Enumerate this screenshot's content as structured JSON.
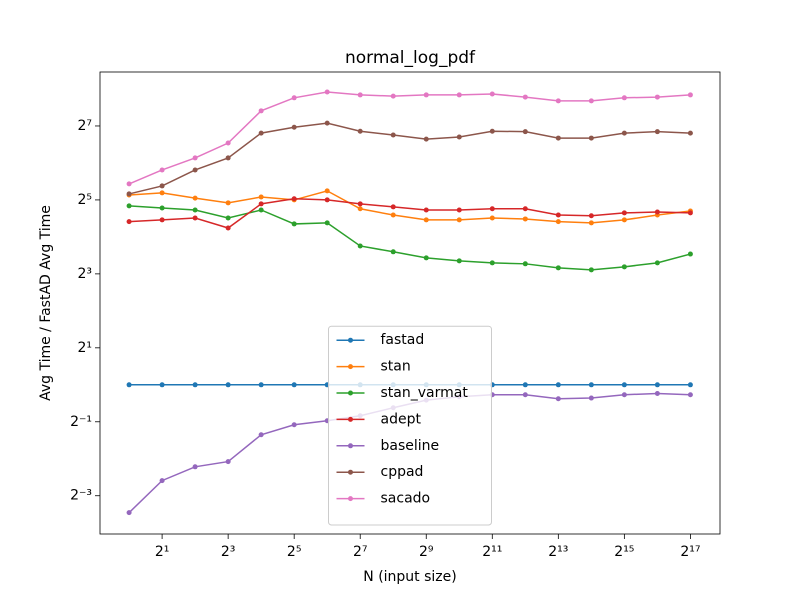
{
  "chart_data": {
    "type": "line",
    "title": "normal_log_pdf",
    "xlabel": "N (input size)",
    "ylabel": "Avg Time / FastAD Avg Time",
    "xscale": "log2",
    "yscale": "log2",
    "legend": "lower center",
    "x": [
      1,
      2,
      4,
      8,
      16,
      32,
      64,
      128,
      256,
      512,
      1024,
      2048,
      4096,
      8192,
      16384,
      32768,
      65536,
      131072
    ],
    "xlim": [
      0.543,
      244000
    ],
    "ylim": [
      0.061,
      352
    ],
    "xticks": [
      {
        "value": 2,
        "label": "2¹"
      },
      {
        "value": 8,
        "label": "2³"
      },
      {
        "value": 32,
        "label": "2⁵"
      },
      {
        "value": 128,
        "label": "2⁷"
      },
      {
        "value": 512,
        "label": "2⁹"
      },
      {
        "value": 2048,
        "label": "2¹¹"
      },
      {
        "value": 8192,
        "label": "2¹³"
      },
      {
        "value": 32768,
        "label": "2¹⁵"
      },
      {
        "value": 131072,
        "label": "2¹⁷"
      }
    ],
    "yticks": [
      {
        "value": 0.125,
        "label": "2⁻³"
      },
      {
        "value": 0.5,
        "label": "2⁻¹"
      },
      {
        "value": 2,
        "label": "2¹"
      },
      {
        "value": 8,
        "label": "2³"
      },
      {
        "value": 32,
        "label": "2⁵"
      },
      {
        "value": 128,
        "label": "2⁷"
      }
    ],
    "series": [
      {
        "name": "fastad",
        "color": "#1f77b4",
        "values": [
          1,
          1,
          1,
          1,
          1,
          1,
          1,
          1,
          1,
          1,
          1,
          1,
          1,
          1,
          1,
          1,
          1,
          1
        ]
      },
      {
        "name": "stan",
        "color": "#ff7f0e",
        "values": [
          35.1,
          36.5,
          33.1,
          30.3,
          33.8,
          32,
          37.9,
          27.1,
          24.1,
          22.0,
          22.0,
          22.8,
          22.4,
          21.3,
          20.8,
          22.0,
          24.1,
          26.0
        ]
      },
      {
        "name": "stan_varmat",
        "color": "#2ca02c",
        "values": [
          28.6,
          27.5,
          26.5,
          22.8,
          26.5,
          20.4,
          20.8,
          13.5,
          12.1,
          10.8,
          10.2,
          9.83,
          9.66,
          8.96,
          8.63,
          9.13,
          9.83,
          11.6
        ]
      },
      {
        "name": "adept",
        "color": "#d62728",
        "values": [
          21.3,
          22.0,
          22.8,
          18.9,
          29.7,
          32.7,
          32,
          29.7,
          28.1,
          26.5,
          26.5,
          27.1,
          27.1,
          24.1,
          23.8,
          25.1,
          25.5,
          25.1
        ]
      },
      {
        "name": "baseline",
        "color": "#9467bd",
        "values": [
          0.091,
          0.166,
          0.215,
          0.237,
          0.392,
          0.473,
          0.51,
          0.56,
          0.65,
          0.75,
          0.8,
          0.83,
          0.83,
          0.77,
          0.78,
          0.83,
          0.85,
          0.83
        ]
      },
      {
        "name": "cppad",
        "color": "#8c564b",
        "values": [
          35.8,
          41.6,
          56.1,
          70.3,
          112,
          125,
          135,
          116,
          108,
          100,
          104,
          116,
          115,
          102,
          102,
          112,
          115,
          112
        ]
      },
      {
        "name": "sacado",
        "color": "#e377c2",
        "values": [
          43.2,
          56.1,
          70.3,
          93,
          170,
          217,
          242,
          229,
          224,
          229,
          229,
          233,
          220,
          205,
          205,
          217,
          220,
          229
        ]
      }
    ]
  }
}
